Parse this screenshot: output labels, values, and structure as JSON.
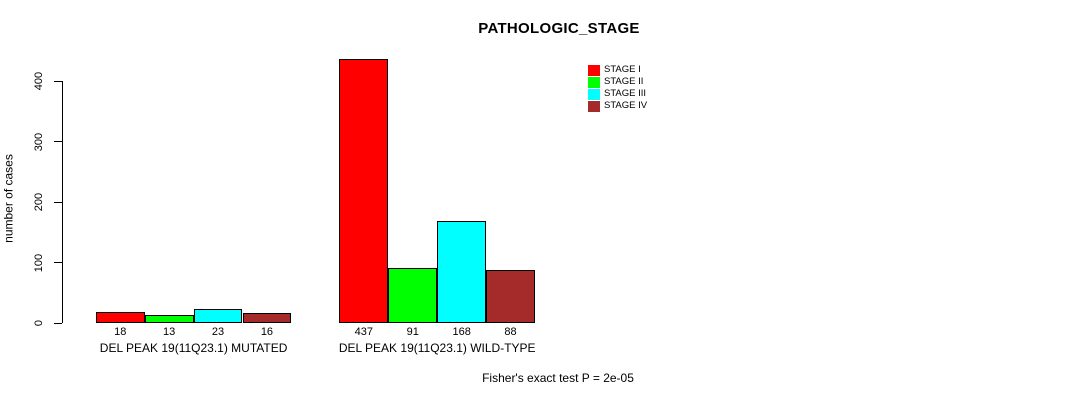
{
  "chart_data": {
    "type": "bar",
    "title": "PATHOLOGIC_STAGE",
    "ylabel": "number of cases",
    "xlabel": "",
    "ylim": [
      0,
      400
    ],
    "yticks": [
      0,
      100,
      200,
      300,
      400
    ],
    "grid": false,
    "legend_position": "top-right",
    "categories": [
      "DEL PEAK 19(11Q23.1) MUTATED",
      "DEL PEAK 19(11Q23.1) WILD-TYPE"
    ],
    "series": [
      {
        "name": "STAGE I",
        "color": "#FF0000",
        "values": [
          18,
          437
        ]
      },
      {
        "name": "STAGE II",
        "color": "#00FF00",
        "values": [
          13,
          91
        ]
      },
      {
        "name": "STAGE III",
        "color": "#00FFFF",
        "values": [
          23,
          168
        ]
      },
      {
        "name": "STAGE IV",
        "color": "#A52A2A",
        "values": [
          16,
          88
        ]
      }
    ],
    "bar_value_labels": [
      "18",
      "13",
      "23",
      "16",
      "437",
      "91",
      "168",
      "88"
    ],
    "footnote": "Fisher's exact test P = 2e-05"
  }
}
